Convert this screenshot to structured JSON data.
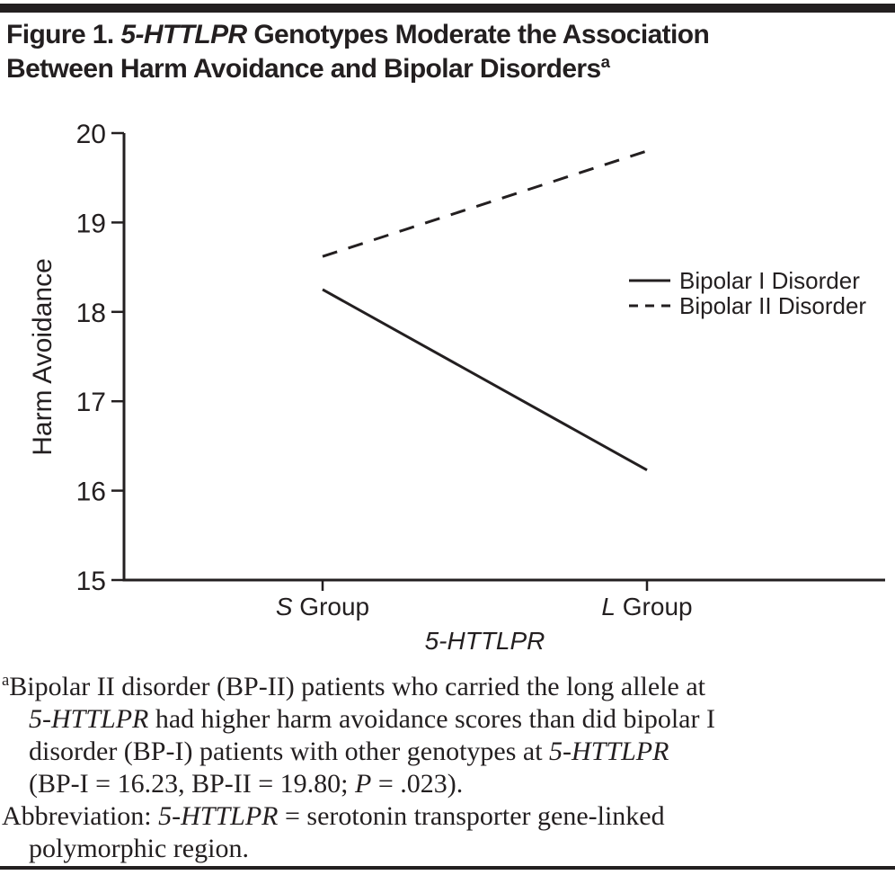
{
  "figure": {
    "title": {
      "line1": [
        {
          "text": "Figure 1. "
        },
        {
          "text": "5-HTTLPR",
          "italic": true
        },
        {
          "text": " Genotypes Moderate the Association"
        }
      ],
      "line2": [
        {
          "text": "Between Harm Avoidance and Bipolar Disorders"
        },
        {
          "text": "a",
          "sup": true
        }
      ]
    },
    "footnote": {
      "lines": [
        [
          {
            "text": "a",
            "sup": true
          },
          {
            "text": "Bipolar II disorder (BP-II) patients who carried the long allele at"
          }
        ],
        [
          {
            "text": "5-HTTLPR",
            "italic": true
          },
          {
            "text": " had higher harm avoidance scores than did bipolar I"
          }
        ],
        [
          {
            "text": "disorder (BP-I) patients with other genotypes at "
          },
          {
            "text": "5-HTTLPR",
            "italic": true
          }
        ],
        [
          {
            "text": "(BP-I = 16.23, BP-II = 19.80; "
          },
          {
            "text": "P",
            "italic": true
          },
          {
            "text": " = .023)."
          }
        ],
        [
          {
            "text": "Abbreviation: "
          },
          {
            "text": "5-HTTLPR",
            "italic": true
          },
          {
            "text": " = serotonin transporter gene-linked"
          }
        ],
        [
          {
            "text": "polymorphic region."
          }
        ]
      ]
    }
  },
  "chart_data": {
    "type": "line",
    "categories": [
      "S Group",
      "L Group"
    ],
    "series": [
      {
        "name": "Bipolar I Disorder",
        "line_style": "solid",
        "values": [
          18.25,
          16.23
        ]
      },
      {
        "name": "Bipolar II Disorder",
        "line_style": "dashed",
        "values": [
          18.62,
          19.8
        ]
      }
    ],
    "xlabel": "5-HTTLPR",
    "ylabel": "Harm Avoidance",
    "ylim": [
      15,
      20
    ],
    "yticks": [
      15,
      16,
      17,
      18,
      19,
      20
    ],
    "legend_position": "right-middle",
    "grid": false
  },
  "colors": {
    "ink": "#231f20",
    "background": "#ffffff"
  }
}
